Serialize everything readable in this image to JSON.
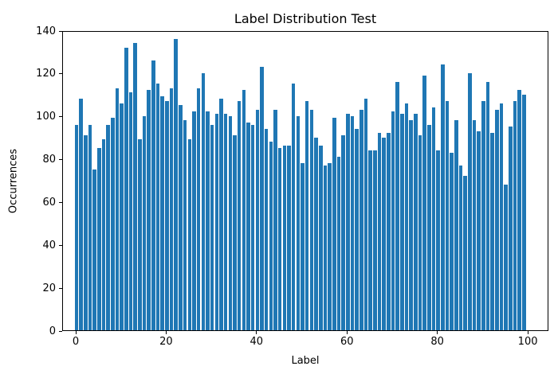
{
  "chart_data": {
    "type": "bar",
    "title": "Label Distribution Test",
    "xlabel": "Label",
    "ylabel": "Occurrences",
    "x_range": [
      0,
      99
    ],
    "values": [
      96,
      108,
      91,
      96,
      75,
      85,
      89,
      96,
      99,
      113,
      106,
      132,
      111,
      134,
      89,
      100,
      112,
      126,
      115,
      109,
      107,
      113,
      136,
      105,
      98,
      89,
      102,
      113,
      120,
      102,
      96,
      101,
      108,
      101,
      100,
      91,
      107,
      112,
      97,
      96,
      103,
      123,
      94,
      88,
      103,
      85,
      86,
      86,
      115,
      100,
      78,
      107,
      103,
      90,
      86,
      77,
      78,
      99,
      81,
      91,
      101,
      100,
      94,
      103,
      108,
      84,
      84,
      92,
      90,
      92,
      102,
      116,
      101,
      106,
      98,
      101,
      91,
      119,
      96,
      104,
      84,
      124,
      107,
      83,
      98,
      77,
      72,
      120,
      98,
      93,
      107,
      116,
      92,
      103,
      106,
      68,
      95,
      107,
      112,
      110
    ],
    "ylim": [
      0,
      140
    ],
    "yticks": [
      0,
      20,
      40,
      60,
      80,
      100,
      120,
      140
    ],
    "xticks": [
      0,
      20,
      40,
      60,
      80,
      100
    ],
    "bar_color": "#1f77b4",
    "axis_color": "#000000",
    "background_color": "#ffffff",
    "grid": false,
    "legend": null,
    "bar_width_fraction": 0.8
  }
}
